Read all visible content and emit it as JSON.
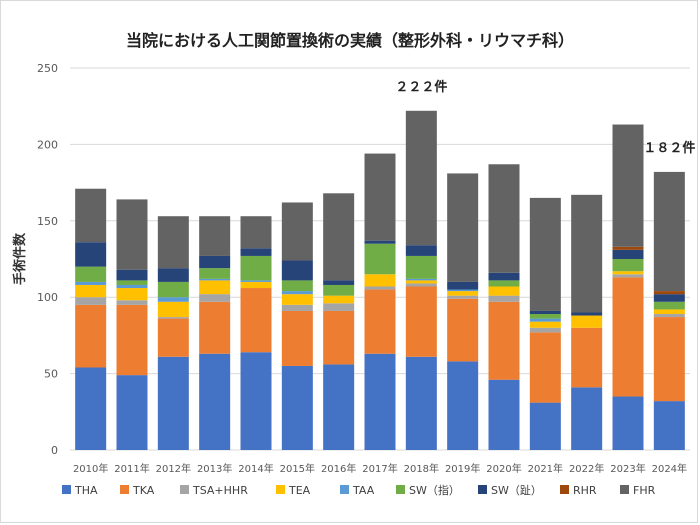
{
  "chart_data": {
    "type": "bar",
    "stacked": true,
    "title": "当院における人工関節置換術の実績（整形外科・リウマチ科）",
    "xlabel": "",
    "ylabel": "手術件数",
    "ylim": [
      0,
      250
    ],
    "yticks": [
      0,
      50,
      100,
      150,
      200,
      250
    ],
    "grid": true,
    "legend_position": "bottom",
    "categories": [
      "2010年",
      "2011年",
      "2012年",
      "2013年",
      "2014年",
      "2015年",
      "2016年",
      "2017年",
      "2018年",
      "2019年",
      "2020年",
      "2021年",
      "2022年",
      "2023年",
      "2024年"
    ],
    "series": [
      {
        "name": "THA",
        "color": "#4472c4",
        "values": [
          54,
          49,
          61,
          63,
          64,
          55,
          56,
          63,
          61,
          58,
          46,
          31,
          41,
          35,
          32
        ]
      },
      {
        "name": "TKA",
        "color": "#ed7d31",
        "values": [
          41,
          46,
          25,
          34,
          42,
          36,
          35,
          42,
          46,
          41,
          51,
          46,
          39,
          78,
          55
        ]
      },
      {
        "name": "TSA+HHR",
        "color": "#a5a5a5",
        "values": [
          5,
          3,
          1,
          5,
          0,
          4,
          5,
          2,
          2,
          2,
          4,
          3,
          0,
          2,
          2
        ]
      },
      {
        "name": "TEA",
        "color": "#ffc000",
        "values": [
          8,
          8,
          10,
          9,
          4,
          7,
          5,
          8,
          2,
          3,
          6,
          4,
          8,
          2,
          3
        ]
      },
      {
        "name": "TAA",
        "color": "#5b9bd5",
        "values": [
          2,
          2,
          3,
          1,
          1,
          2,
          0,
          0,
          1,
          1,
          0,
          2,
          0,
          0,
          0
        ]
      },
      {
        "name": "SW（指）",
        "color": "#70ad47",
        "values": [
          10,
          3,
          10,
          7,
          16,
          7,
          7,
          20,
          15,
          0,
          4,
          3,
          0,
          8,
          5
        ]
      },
      {
        "name": "SW（趾）",
        "color": "#264478",
        "values": [
          16,
          7,
          9,
          8,
          5,
          13,
          3,
          2,
          7,
          5,
          5,
          2,
          2,
          6,
          5
        ]
      },
      {
        "name": "RHR",
        "color": "#9e480e",
        "values": [
          0,
          0,
          0,
          0,
          0,
          0,
          0,
          0,
          0,
          0,
          0,
          0,
          0,
          2,
          2
        ]
      },
      {
        "name": "FHR",
        "color": "#636363",
        "values": [
          35,
          46,
          34,
          26,
          21,
          38,
          57,
          57,
          88,
          71,
          71,
          74,
          77,
          80,
          78
        ]
      }
    ],
    "annotations": [
      {
        "category": "2018年",
        "text": "２２２件"
      },
      {
        "category": "2024年",
        "text": "１８２件"
      }
    ]
  }
}
